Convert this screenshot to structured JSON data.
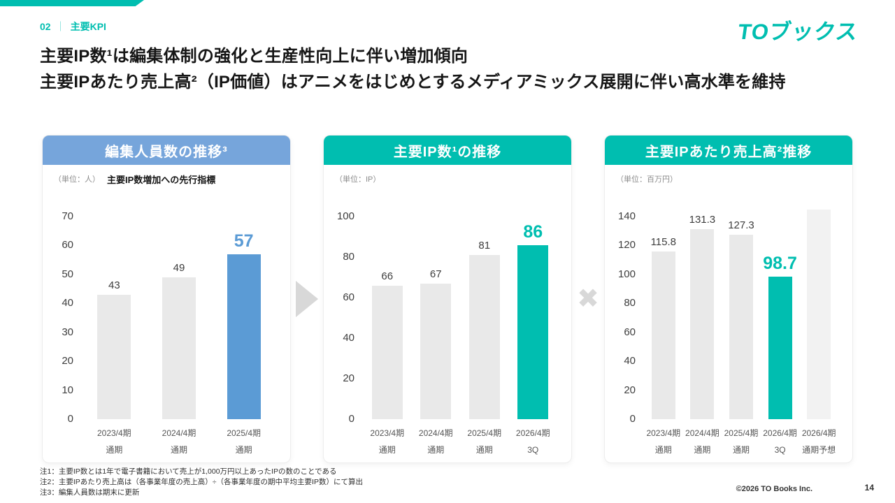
{
  "colors": {
    "teal": "#00BEB0",
    "blue_header": "#76A5DB",
    "blue_bar": "#5B9BD5",
    "gray_bar": "#E9E9E9",
    "forecast_bar": "#F2F2F2"
  },
  "header": {
    "section_number": "02",
    "section_divider": "｜",
    "section_title": "主要KPI",
    "logo": "TOブックス"
  },
  "title": {
    "line1": "主要IP数¹は編集体制の強化と生産性向上に伴い増加傾向",
    "line2": "主要IPあたり売上高²（IP価値）はアニメをはじめとするメディアミックス展開に伴い高水準を維持"
  },
  "connectors": {
    "multiply": "✖"
  },
  "chart_data": [
    {
      "type": "bar",
      "title": "編集人員数の推移³",
      "header_color": "#76A5DB",
      "unit": "（単位：人）",
      "note": "主要IP数増加への先行指標",
      "categories": [
        [
          "2023/4期",
          "通期"
        ],
        [
          "2024/4期",
          "通期"
        ],
        [
          "2025/4期",
          "通期"
        ]
      ],
      "values": [
        43,
        49,
        57
      ],
      "labels": [
        "43",
        "49",
        "57"
      ],
      "highlight_index": 2,
      "highlight_color": "#5B9BD5",
      "yticks": [
        0,
        10,
        20,
        30,
        40,
        50,
        60,
        70
      ],
      "ymax": 70,
      "ylim": [
        0,
        70
      ],
      "grid": false,
      "legend": false
    },
    {
      "type": "bar",
      "title": "主要IP数¹の推移",
      "header_color": "#00BEB0",
      "unit": "（単位：IP）",
      "note": "",
      "categories": [
        [
          "2023/4期",
          "通期"
        ],
        [
          "2024/4期",
          "通期"
        ],
        [
          "2025/4期",
          "通期"
        ],
        [
          "2026/4期",
          "3Q"
        ]
      ],
      "values": [
        66,
        67,
        81,
        86
      ],
      "labels": [
        "66",
        "67",
        "81",
        "86"
      ],
      "highlight_index": 3,
      "highlight_color": "#00BEB0",
      "yticks": [
        0,
        20,
        40,
        60,
        80,
        100
      ],
      "ymax": 100,
      "ylim": [
        0,
        100
      ],
      "grid": false,
      "legend": false
    },
    {
      "type": "bar",
      "title": "主要IPあたり売上高²推移",
      "header_color": "#00BEB0",
      "unit": "（単位：百万円）",
      "note": "",
      "categories": [
        [
          "2023/4期",
          "通期"
        ],
        [
          "2024/4期",
          "通期"
        ],
        [
          "2025/4期",
          "通期"
        ],
        [
          "2026/4期",
          "3Q"
        ],
        [
          "2026/4期",
          "通期予想"
        ]
      ],
      "values": [
        115.8,
        131.3,
        127.3,
        98.7,
        145
      ],
      "labels": [
        "115.8",
        "131.3",
        "127.3",
        "98.7",
        ""
      ],
      "highlight_index": 3,
      "highlight_color": "#00BEB0",
      "muted_index": 4,
      "yticks": [
        0,
        20,
        40,
        60,
        80,
        100,
        120,
        140
      ],
      "ymax": 140,
      "ylim": [
        0,
        140
      ],
      "grid": false,
      "legend": false
    }
  ],
  "footnotes": [
    "注1：主要IP数とは1年で電子書籍において売上が1,000万円以上あったIPの数のことである",
    "注2：主要IPあたり売上高は（各事業年度の売上高）÷（各事業年度の期中平均主要IP数）にて算出",
    "注3：編集人員数は期末に更新"
  ],
  "footer": {
    "copyright": "©2026  TO Books Inc.",
    "page_number": "14"
  }
}
